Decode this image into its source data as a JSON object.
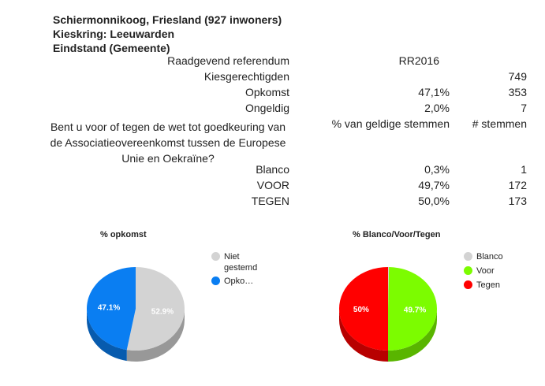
{
  "header": {
    "line1": "Schiermonnikoog, Friesland (927 inwoners)",
    "line2": "Kieskring: Leeuwarden",
    "line3": "Eindstand (Gemeente)"
  },
  "table": {
    "referendum_label": "Raadgevend referendum",
    "referendum_code": "RR2016",
    "kiesgerechtigden": {
      "label": "Kiesgerechtigden",
      "count": "749"
    },
    "opkomst": {
      "label": "Opkomst",
      "pct": "47,1%",
      "count": "353"
    },
    "ongeldig": {
      "label": "Ongeldig",
      "pct": "2,0%",
      "count": "7"
    },
    "question": "Bent u voor of tegen de wet tot goedkeuring van de Associatieovereenkomst tussen de Europese Unie en Oekraïne?",
    "col_pct_header": "% van geldige stemmen",
    "col_count_header": "# stemmen",
    "blanco": {
      "label": "Blanco",
      "pct": "0,3%",
      "count": "1"
    },
    "voor": {
      "label": "VOOR",
      "pct": "49,7%",
      "count": "172"
    },
    "tegen": {
      "label": "TEGEN",
      "pct": "50,0%",
      "count": "173"
    }
  },
  "chart_data": [
    {
      "type": "pie",
      "title": "% opkomst",
      "slices": [
        {
          "label": "Niet gestemd",
          "value": 52.9,
          "display": "52.9%",
          "color": "#d3d3d3",
          "show_label": true
        },
        {
          "label": "Opko…",
          "value": 47.1,
          "display": "47.1%",
          "color": "#0a7ef2",
          "show_label": true
        }
      ],
      "legend": "right",
      "style": "3d"
    },
    {
      "type": "pie",
      "title": "% Blanco/Voor/Tegen",
      "slices": [
        {
          "label": "Blanco",
          "value": 0.3,
          "display": "",
          "color": "#d3d3d3",
          "show_label": false
        },
        {
          "label": "Voor",
          "value": 49.7,
          "display": "49.7%",
          "color": "#7cfc00",
          "show_label": true
        },
        {
          "label": "Tegen",
          "value": 50,
          "display": "50%",
          "color": "#ff0000",
          "show_label": true
        }
      ],
      "legend": "right",
      "style": "3d"
    }
  ]
}
